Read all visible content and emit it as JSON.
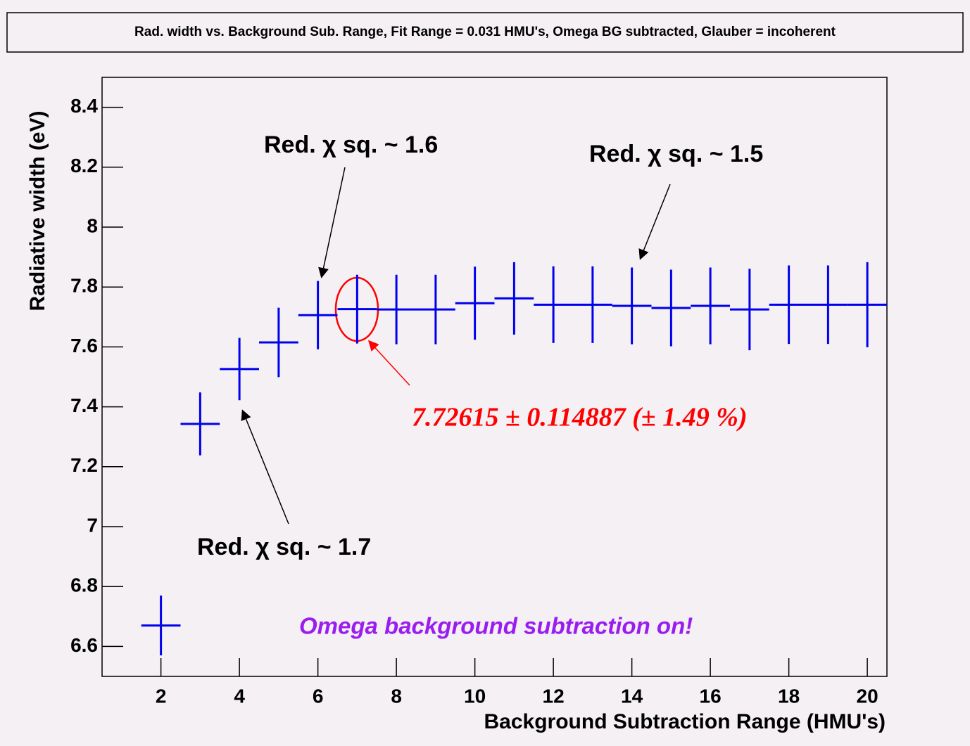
{
  "chart_data": {
    "type": "errorbar",
    "title": "Rad. width vs. Background Sub. Range, Fit Range = 0.031 HMU's, Omega BG subtracted, Glauber = incoherent",
    "x_label": "Background Subtraction Range (HMU's)",
    "y_label": "Radiative width (eV)",
    "xlim": [
      0.5,
      20.5
    ],
    "ylim": [
      6.5,
      8.5
    ],
    "xticks": [
      2,
      4,
      6,
      8,
      10,
      12,
      14,
      16,
      18,
      20
    ],
    "yticks": [
      6.6,
      6.8,
      7,
      7.2,
      7.4,
      7.6,
      7.8,
      8,
      8.2,
      8.4
    ],
    "x_halfwidth": 0.5,
    "series": [
      {
        "color": "#0000ee",
        "x": [
          2,
          3,
          4,
          5,
          6,
          7,
          8,
          9,
          10,
          11,
          12,
          13,
          14,
          15,
          16,
          17,
          18,
          19,
          20
        ],
        "values": [
          6.67,
          7.343,
          7.526,
          7.615,
          7.706,
          7.72615,
          7.725,
          7.725,
          7.746,
          7.762,
          7.741,
          7.741,
          7.737,
          7.73,
          7.737,
          7.725,
          7.741,
          7.741,
          7.741
        ],
        "errors": [
          0.1,
          0.105,
          0.104,
          0.116,
          0.114,
          0.114887,
          0.116,
          0.116,
          0.122,
          0.121,
          0.128,
          0.128,
          0.128,
          0.128,
          0.128,
          0.136,
          0.131,
          0.131,
          0.142
        ]
      }
    ],
    "annotations": [
      {
        "text": "Red. χ sq. ~ 1.6"
      },
      {
        "text": "Red. χ sq. ~ 1.5"
      },
      {
        "text": "Red. χ sq. ~ 1.7"
      },
      {
        "text": "7.72615 ± 0.114887 (± 1.49 %)",
        "color": "#ff0000"
      },
      {
        "text": "Omega background subtraction on!",
        "color": "#9a1cf0"
      }
    ]
  }
}
